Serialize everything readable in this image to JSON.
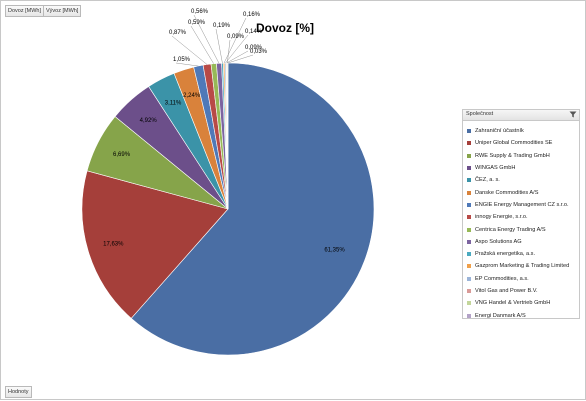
{
  "pivot": {
    "field_buttons": [
      "Dovoz [MWh]",
      "Vývoz [MWh]"
    ],
    "values_label": "Hodnoty"
  },
  "legend": {
    "header": "Společnost"
  },
  "chart_data": {
    "type": "pie",
    "title": "Dovoz [%]",
    "legend_position": "right",
    "categories": [
      "Zahraniční účastník",
      "Uniper Global Commodities SE",
      "RWE Supply & Trading GmbH",
      "WINGAS GmbH",
      "ČEZ, a. s.",
      "Danske Commodities A/S",
      "ENGIE Energy Management CZ s.r.o.",
      "innogy Energie, s.r.o.",
      "Centrica Energy Trading A/S",
      "Axpo Solutions AG",
      "Pražská energetika, a.s.",
      "Gazprom Marketing & Trading Limited",
      "EP Commodities, a.s.",
      "Vitol Gas and Power B.V.",
      "VNG Handel & Vertrieb GmbH",
      "Energi Danmark A/S"
    ],
    "values": [
      61.35,
      17.63,
      6.69,
      4.92,
      3.11,
      2.24,
      1.05,
      0.87,
      0.59,
      0.56,
      0.19,
      0.16,
      0.14,
      0.09,
      0.09,
      0.03
    ],
    "data_labels": [
      "61,35%",
      "17,63%",
      "6,69%",
      "4,92%",
      "3,11%",
      "2,24%",
      "1,05%",
      "0,87%",
      "0,59%",
      "0,56%",
      "0,19%",
      "0,16%",
      "0,14%",
      "0,09%",
      "0,09%",
      "0,03%"
    ],
    "colors": [
      "#4a6ea4",
      "#a53f3a",
      "#86a44a",
      "#6c4f8a",
      "#3b93a8",
      "#d9823b",
      "#4f79b8",
      "#b84a47",
      "#97b957",
      "#7c64a0",
      "#4aaac0",
      "#f0a04a",
      "#9bb4d8",
      "#d99a98",
      "#c3d69b",
      "#b3a2c7"
    ]
  }
}
